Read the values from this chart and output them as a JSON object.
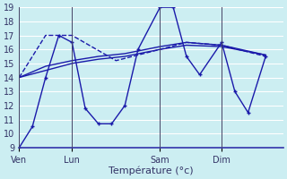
{
  "xlabel": "Température (°c)",
  "ylim": [
    9,
    19
  ],
  "yticks": [
    9,
    10,
    11,
    12,
    13,
    14,
    15,
    16,
    17,
    18,
    19
  ],
  "background_color": "#cceef2",
  "grid_color": "#ffffff",
  "line_color": "#1a1aaa",
  "xtick_labels": [
    "Ven",
    "Lun",
    "Sam",
    "Dim"
  ],
  "xtick_positions": [
    0,
    6,
    16,
    23
  ],
  "xlim": [
    0,
    30
  ],
  "vline_positions": [
    0,
    6,
    16,
    23
  ],
  "series": [
    {
      "x": [
        0,
        1.5,
        3,
        4.5,
        6,
        7.5,
        9,
        10.5,
        12,
        13.5,
        16,
        17.5,
        19,
        20.5,
        23,
        24.5,
        26,
        28
      ],
      "y": [
        9,
        10.5,
        14,
        17,
        16.5,
        11.8,
        10.7,
        10.7,
        12,
        16,
        19,
        19,
        15.5,
        14.2,
        16.5,
        13,
        11.5,
        15.5
      ],
      "style": "-",
      "marker": "+",
      "lw": 1.0
    },
    {
      "x": [
        0,
        3,
        6,
        11,
        16,
        19,
        23,
        28
      ],
      "y": [
        14,
        17,
        17,
        15.2,
        16.0,
        16.5,
        16.3,
        15.5
      ],
      "style": "--",
      "marker": null,
      "lw": 1.0
    },
    {
      "x": [
        0,
        3,
        6,
        9,
        12,
        16,
        19,
        23,
        28
      ],
      "y": [
        14,
        14.5,
        15,
        15.3,
        15.5,
        16.0,
        16.3,
        16.2,
        15.6
      ],
      "style": "-",
      "marker": null,
      "lw": 1.0
    },
    {
      "x": [
        0,
        3,
        6,
        9,
        12,
        16,
        19,
        23,
        28
      ],
      "y": [
        14,
        14.8,
        15.2,
        15.5,
        15.7,
        16.2,
        16.5,
        16.3,
        15.6
      ],
      "style": "-",
      "marker": null,
      "lw": 1.0
    }
  ]
}
